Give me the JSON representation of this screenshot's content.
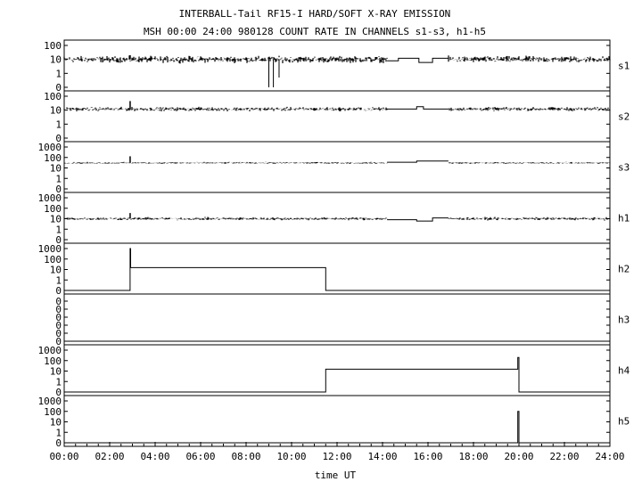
{
  "titles": {
    "line1": "INTERBALL-Tail RF15-I HARD/SOFT X-RAY EMISSION",
    "line2": "MSH 00:00 24:00 980128  COUNT RATE IN CHANNELS s1-s3, h1-h5"
  },
  "chart_data": {
    "type": "line",
    "xlabel": "time UT",
    "x_unit": "hours UT",
    "xlim": [
      0,
      24
    ],
    "x_ticks": [
      "00:00",
      "02:00",
      "04:00",
      "06:00",
      "08:00",
      "10:00",
      "12:00",
      "14:00",
      "16:00",
      "18:00",
      "20:00",
      "22:00",
      "24:00"
    ],
    "grid": false,
    "y_scale": "log",
    "panels": [
      {
        "name": "s1",
        "y_ticks": [
          "100",
          "10",
          "1",
          "0"
        ],
        "y_tick_values": [
          100,
          10,
          1,
          0
        ],
        "baseline": 10,
        "noise_decades": 0.2,
        "segments": [
          {
            "kind": "noise",
            "from": 0,
            "to": 14.2
          },
          {
            "kind": "noise",
            "from": 16.9,
            "to": 24
          }
        ],
        "step_points": [
          [
            14.2,
            8
          ],
          [
            14.7,
            8
          ],
          [
            14.7,
            12
          ],
          [
            15.6,
            12
          ],
          [
            15.6,
            6
          ],
          [
            16.2,
            6
          ],
          [
            16.2,
            12
          ],
          [
            16.9,
            12
          ]
        ],
        "spikes": [
          [
            2.9,
            20
          ]
        ],
        "dips": [
          [
            9.0,
            0
          ],
          [
            9.2,
            0
          ],
          [
            9.45,
            0.5
          ]
        ]
      },
      {
        "name": "s2",
        "y_ticks": [
          "100",
          "10",
          "1",
          "0"
        ],
        "y_tick_values": [
          100,
          10,
          1,
          0
        ],
        "baseline": 12,
        "noise_decades": 0.12,
        "segments": [
          {
            "kind": "noise",
            "from": 0,
            "to": 14.2
          },
          {
            "kind": "noise",
            "from": 16.9,
            "to": 24
          }
        ],
        "step_points": [
          [
            14.2,
            12
          ],
          [
            15.5,
            12
          ],
          [
            15.5,
            18
          ],
          [
            15.8,
            18
          ],
          [
            15.8,
            12
          ],
          [
            16.9,
            12
          ]
        ],
        "spikes": [
          [
            2.9,
            45
          ]
        ],
        "dips": []
      },
      {
        "name": "s3",
        "y_ticks": [
          "1000",
          "100",
          "10",
          "1",
          "0"
        ],
        "y_tick_values": [
          1000,
          100,
          10,
          1,
          0
        ],
        "baseline": 30,
        "noise_decades": 0.07,
        "segments": [
          {
            "kind": "noise",
            "from": 0,
            "to": 14.2
          },
          {
            "kind": "noise",
            "from": 16.9,
            "to": 24
          }
        ],
        "step_points": [
          [
            14.2,
            35
          ],
          [
            15.5,
            35
          ],
          [
            15.5,
            45
          ],
          [
            16.9,
            45
          ]
        ],
        "spikes": [
          [
            2.9,
            130
          ]
        ],
        "dips": []
      },
      {
        "name": "h1",
        "y_ticks": [
          "1000",
          "100",
          "10",
          "1",
          "0"
        ],
        "y_tick_values": [
          1000,
          100,
          10,
          1,
          0
        ],
        "baseline": 10,
        "noise_decades": 0.12,
        "segments": [
          {
            "kind": "noise",
            "from": 0,
            "to": 14.2
          },
          {
            "kind": "noise",
            "from": 16.9,
            "to": 24
          }
        ],
        "step_points": [
          [
            14.2,
            8
          ],
          [
            15.5,
            8
          ],
          [
            15.5,
            6
          ],
          [
            16.2,
            6
          ],
          [
            16.2,
            12
          ],
          [
            16.9,
            12
          ]
        ],
        "spikes": [
          [
            2.9,
            35
          ]
        ],
        "dips": []
      },
      {
        "name": "h2",
        "y_ticks": [
          "1000",
          "100",
          "10",
          "1",
          "0"
        ],
        "y_tick_values": [
          1000,
          100,
          10,
          1,
          0
        ],
        "step_points": [
          [
            0,
            0
          ],
          [
            2.9,
            0
          ],
          [
            2.9,
            1000
          ],
          [
            2.92,
            1000
          ],
          [
            2.92,
            15
          ],
          [
            11.5,
            15
          ],
          [
            11.5,
            0
          ],
          [
            24,
            0
          ]
        ]
      },
      {
        "name": "h3",
        "y_ticks": [
          "0",
          "0",
          "0",
          "0",
          "0",
          "0"
        ],
        "y_tick_values": [],
        "step_points": [
          [
            0,
            0
          ],
          [
            24,
            0
          ]
        ]
      },
      {
        "name": "h4",
        "y_ticks": [
          "1000",
          "100",
          "10",
          "1",
          "0"
        ],
        "y_tick_values": [
          1000,
          100,
          10,
          1,
          0
        ],
        "step_points": [
          [
            0,
            0
          ],
          [
            11.5,
            0
          ],
          [
            11.5,
            15
          ],
          [
            19.95,
            15
          ],
          [
            19.95,
            200
          ],
          [
            20.0,
            200
          ],
          [
            20.0,
            0
          ],
          [
            24,
            0
          ]
        ]
      },
      {
        "name": "h5",
        "y_ticks": [
          "1000",
          "100",
          "10",
          "1",
          "0"
        ],
        "y_tick_values": [
          1000,
          100,
          10,
          1,
          0
        ],
        "step_points": [
          [
            0,
            0
          ],
          [
            19.95,
            0
          ],
          [
            19.95,
            100
          ],
          [
            20.0,
            100
          ],
          [
            20.0,
            0
          ],
          [
            24,
            0
          ]
        ]
      }
    ]
  }
}
